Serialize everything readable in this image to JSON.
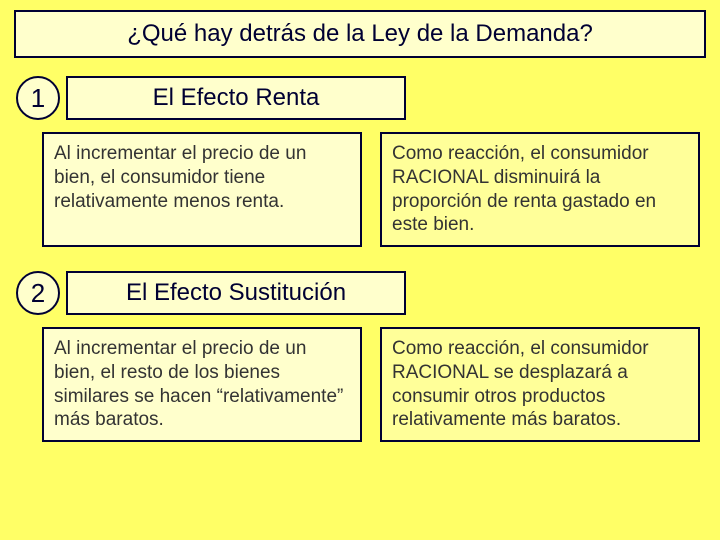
{
  "background_color": "#ffff66",
  "box_light": "#ffffcc",
  "box_mid": "#ffff99",
  "border_color": "#000033",
  "title": "¿Qué hay detrás de la Ley de la Demanda?",
  "sections": [
    {
      "number": "1",
      "heading": "El Efecto Renta",
      "left": "Al incrementar el precio de un bien, el consumidor tiene relativamente menos renta.",
      "right": "Como reacción, el consumidor RACIONAL disminuirá la proporción de renta gastado en este bien."
    },
    {
      "number": "2",
      "heading": "El Efecto Sustitución",
      "left": "Al incrementar el precio de un bien, el resto de los bienes similares se hacen “relativamente” más baratos.",
      "right": "Como reacción, el consumidor RACIONAL se desplazará a consumir otros productos relativamente más baratos."
    }
  ]
}
